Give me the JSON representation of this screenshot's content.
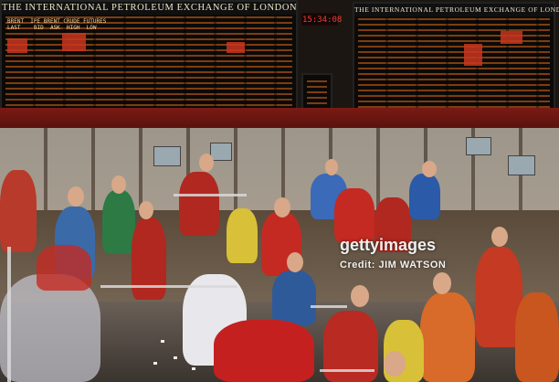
{
  "boards": {
    "left_title": "THE INTERNATIONAL PETROLEUM EXCHANGE OF LONDON",
    "right_title": "THE INTERNATIONAL PETROLEUM EXCHANGE OF LONDON",
    "left_header": "BRENT  IPE BRENT CRUDE FUTURES",
    "left_subheader": "LAST    BID  ASK  HIGH  LOW"
  },
  "clock": {
    "time": "15:34:08"
  },
  "watermark": {
    "brand": "gettyimages",
    "credit": "Credit: JIM WATSON"
  },
  "colors": {
    "board_led": "#ff8c28",
    "trader_red": "#c8281e",
    "trader_blue": "#2a5aa8"
  }
}
